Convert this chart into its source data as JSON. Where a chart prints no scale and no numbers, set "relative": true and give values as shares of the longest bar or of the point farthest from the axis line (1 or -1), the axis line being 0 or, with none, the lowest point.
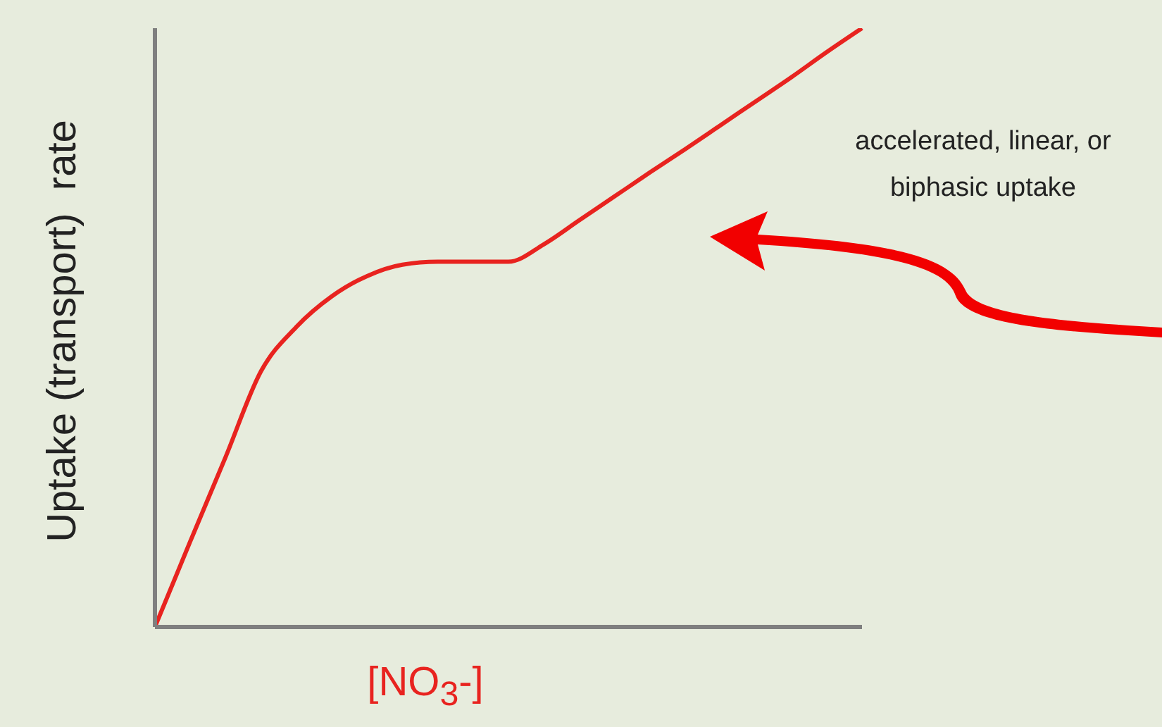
{
  "chart_data": {
    "type": "line",
    "relative": true,
    "xlabel": "[NO$_{3}$-]",
    "ylabel": "Uptake (transport)  rate",
    "annotations": [
      "accelerated, linear, or biphasic uptake"
    ],
    "categories": [
      null,
      null,
      null,
      null,
      null,
      null,
      null,
      null,
      null,
      null,
      null,
      null,
      null,
      null,
      null,
      null,
      null,
      null,
      null,
      null,
      null
    ],
    "series": [
      {
        "color": "#e8231f",
        "values": [
          0,
          0.143,
          0.284,
          0.427,
          0.501,
          0.552,
          0.586,
          0.605,
          0.61,
          0.61,
          0.61,
          0.639,
          0.679,
          0.719,
          0.759,
          0.798,
          0.838,
          0.878,
          0.918,
          0.96,
          1
        ]
      }
    ],
    "grid": false,
    "legend": false,
    "marker": "none",
    "line_style": "solid"
  }
}
